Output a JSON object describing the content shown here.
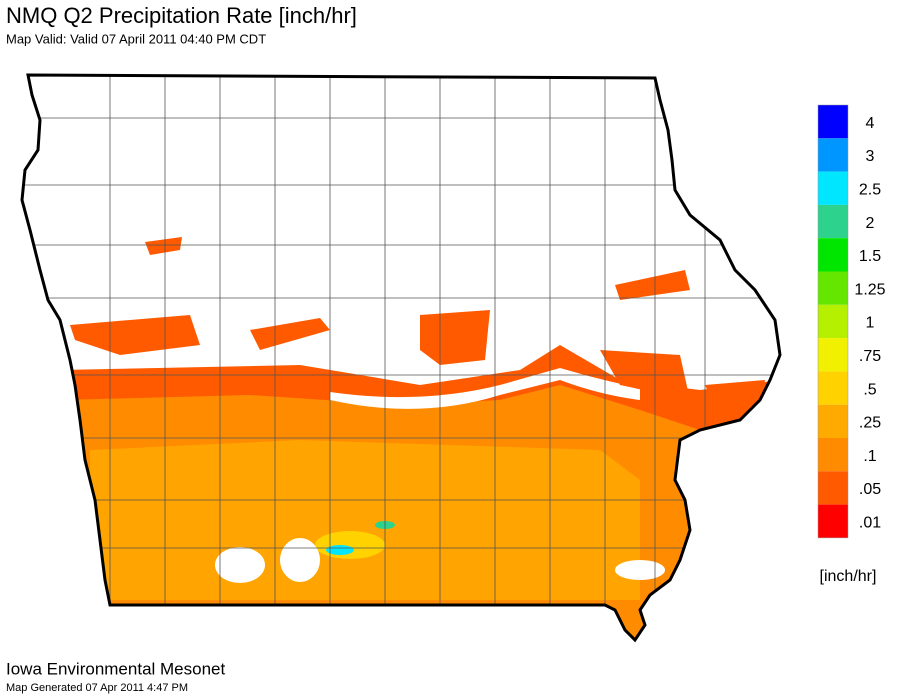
{
  "header": {
    "title": "NMQ Q2 Precipitation Rate [inch/hr]",
    "subtitle": "Map Valid: Valid 07 April 2011 04:40 PM CDT"
  },
  "legend": {
    "items": [
      {
        "label": "4",
        "color": "#0000ff"
      },
      {
        "label": "3",
        "color": "#0096ff"
      },
      {
        "label": "2.5",
        "color": "#00e6ff"
      },
      {
        "label": "2",
        "color": "#2dd28c"
      },
      {
        "label": "1.5",
        "color": "#00e600"
      },
      {
        "label": "1.25",
        "color": "#64e600"
      },
      {
        "label": "1",
        "color": "#b4f000"
      },
      {
        "label": ".75",
        "color": "#f0f000"
      },
      {
        "label": ".5",
        "color": "#ffd200"
      },
      {
        "label": ".25",
        "color": "#ffaa00"
      },
      {
        "label": ".1",
        "color": "#ff8c00"
      },
      {
        "label": ".05",
        "color": "#ff5a00"
      },
      {
        "label": ".01",
        "color": "#ff0000"
      }
    ],
    "unit": "[inch/hr]"
  },
  "footer": {
    "source": "Iowa Environmental Mesonet",
    "generated": "Map Generated 07 Apr 2011 4:47 PM"
  }
}
